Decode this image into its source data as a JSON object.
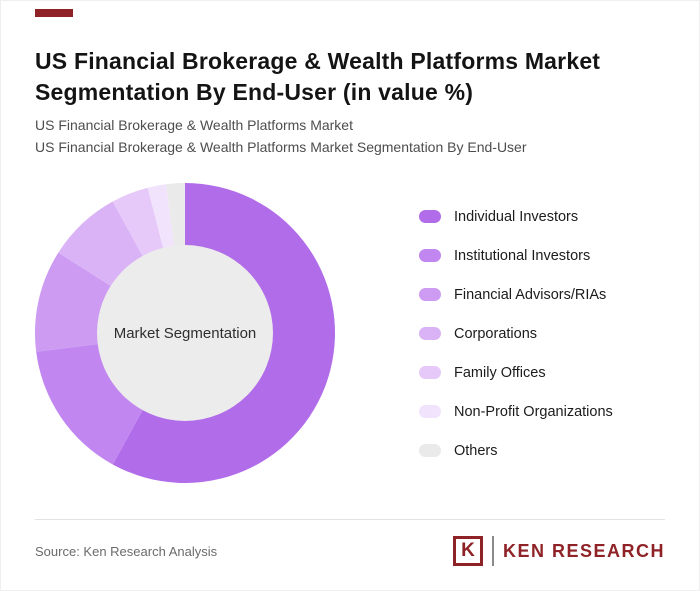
{
  "page": {
    "accent_bar_color": "#8e2226"
  },
  "header": {
    "title": "US Financial Brokerage & Wealth Platforms Market Segmentation By End-User (in value %)",
    "subtitle_line1": "US Financial Brokerage & Wealth Platforms Market",
    "subtitle_line2": "US Financial Brokerage & Wealth Platforms Market Segmentation By End-User"
  },
  "chart_data": {
    "type": "pie",
    "donut": true,
    "title": "US Financial Brokerage & Wealth Platforms Market Segmentation By End-User (in value %)",
    "center_label": "Market Segmentation",
    "center_fill": "#ececec",
    "categories": [
      "Individual Investors",
      "Institutional Investors",
      "Financial Advisors/RIAs",
      "Corporations",
      "Family Offices",
      "Non-Profit Organizations",
      "Others"
    ],
    "values": [
      58,
      15,
      11,
      8,
      4,
      2,
      2
    ],
    "colors": [
      "#b16ce9",
      "#c186ef",
      "#cd9bf2",
      "#dab3f6",
      "#e6c9f9",
      "#f1e3fc",
      "#eaeaea"
    ],
    "legend_position": "right",
    "start_angle_deg": 0,
    "direction": "clockwise"
  },
  "footer": {
    "source": "Source: Ken Research Analysis",
    "logo": {
      "k": "K",
      "text": "KEN RESEARCH",
      "color": "#8e2226"
    }
  }
}
